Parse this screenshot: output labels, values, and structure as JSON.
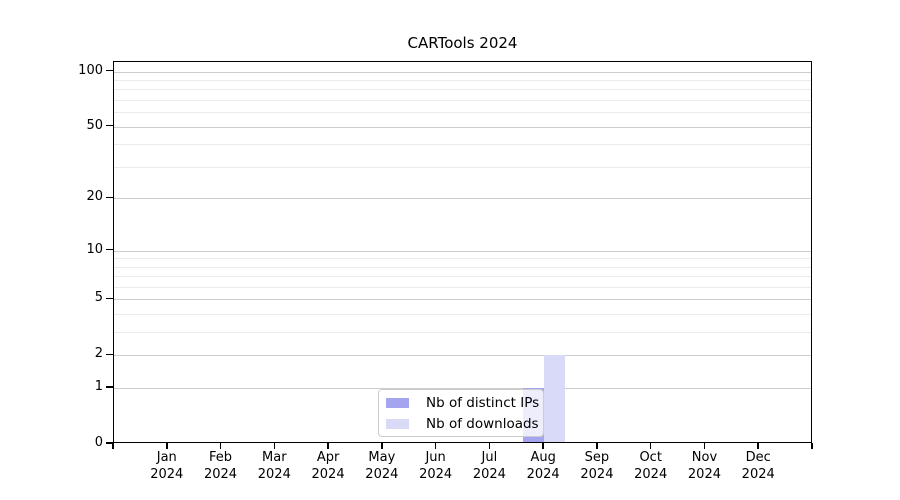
{
  "chart_data": {
    "type": "bar",
    "title": "CARTools 2024",
    "categories": [
      "Jan 2024",
      "Feb 2024",
      "Mar 2024",
      "Apr 2024",
      "May 2024",
      "Jun 2024",
      "Jul 2024",
      "Aug 2024",
      "Sep 2024",
      "Oct 2024",
      "Nov 2024",
      "Dec 2024"
    ],
    "series": [
      {
        "name": "Nb of distinct IPs",
        "color": "#a5a5ef",
        "values": [
          0,
          0,
          0,
          0,
          0,
          0,
          0,
          1,
          0,
          0,
          0,
          0
        ]
      },
      {
        "name": "Nb of downloads",
        "color": "#d9d9f8",
        "values": [
          0,
          0,
          0,
          0,
          0,
          0,
          0,
          2,
          0,
          0,
          0,
          0
        ]
      }
    ],
    "xlabel": "",
    "ylabel": "",
    "yscale": "log1p",
    "yticks": [
      0,
      1,
      2,
      5,
      10,
      20,
      50,
      100
    ],
    "yminorticks": [
      3,
      4,
      6,
      7,
      8,
      9,
      30,
      40,
      60,
      70,
      80,
      90
    ],
    "ylim": [
      0,
      115
    ],
    "grid": "horizontal major and minor gridlines",
    "legend_position": "lower center inside plot"
  },
  "colors": {
    "grid_major": "#cdcdcd",
    "grid_minor": "#ebebeb",
    "axis": "#000000",
    "legend_border": "#cccccc"
  }
}
